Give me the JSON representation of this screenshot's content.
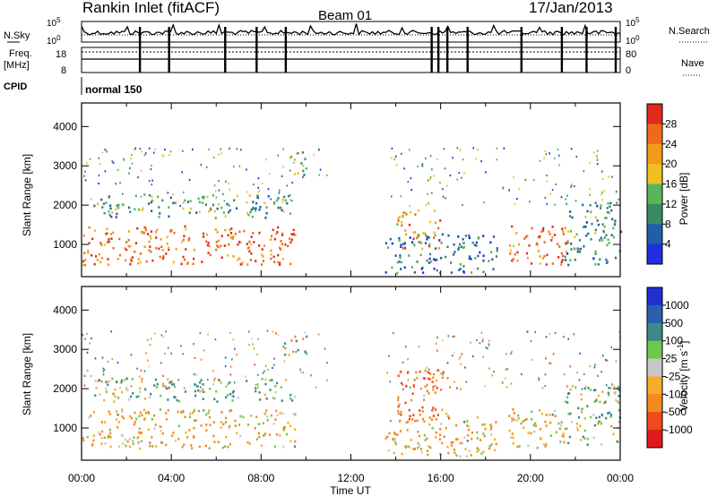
{
  "header": {
    "station": "Rankin Inlet (fitACF)",
    "beam": "Beam 01",
    "date": "17/Jan/2013"
  },
  "side_labels": {
    "nsky": "N.Sky",
    "nsearch": "N.Search",
    "freq_line1": "Freq.",
    "freq_line2": "[MHz]",
    "nave": "Nave",
    "cpid": "CPID"
  },
  "noise_ticks": {
    "top": "10^5",
    "bottom": "10^0"
  },
  "freq_ticks": {
    "top": "18",
    "bottom": "8"
  },
  "nave_ticks": {
    "top": "80",
    "bottom": "0"
  },
  "cpid_value": "normal 150",
  "colors": {
    "power": [
      "#1f2fe0",
      "#1f5fa8",
      "#3a8a66",
      "#57b55a",
      "#f0c020",
      "#f39a1a",
      "#ee6a1a",
      "#e02a1a"
    ],
    "velocity": [
      "#e01a1a",
      "#ef4a1a",
      "#f38a20",
      "#f6ad2a",
      "#c8c8c8",
      "#6fc84a",
      "#3a8a8a",
      "#2a5fb0",
      "#1f2fd0"
    ]
  },
  "chart_data": [
    {
      "type": "heatmap",
      "title": "",
      "ylabel": "Slant Range [km]",
      "xlabel": "Time UT",
      "x_ticks": [
        "00:00",
        "04:00",
        "08:00",
        "12:00",
        "16:00",
        "20:00",
        "00:00"
      ],
      "xlim_hours": [
        0,
        24
      ],
      "y_ticks": [
        1000,
        2000,
        3000,
        4000
      ],
      "ylim": [
        180,
        4600
      ],
      "colorbar": {
        "label": "Power [dB]",
        "ticks": [
          4,
          8,
          12,
          16,
          20,
          24,
          28
        ],
        "range": [
          0,
          32
        ]
      },
      "regions": [
        {
          "t_start": 0.0,
          "t_end": 9.5,
          "r_min": 500,
          "r_max": 1500,
          "value": 26
        },
        {
          "t_start": 0.5,
          "t_end": 9.5,
          "r_min": 1700,
          "r_max": 2300,
          "value": 12
        },
        {
          "t_start": 9.0,
          "t_end": 10.0,
          "r_min": 2800,
          "r_max": 3400,
          "value": 14
        },
        {
          "t_start": 14.0,
          "t_end": 16.0,
          "r_min": 900,
          "r_max": 1900,
          "value": 22
        },
        {
          "t_start": 13.5,
          "t_end": 18.5,
          "r_min": 300,
          "r_max": 1300,
          "value": 8
        },
        {
          "t_start": 19.0,
          "t_end": 21.7,
          "r_min": 500,
          "r_max": 1500,
          "value": 26
        },
        {
          "t_start": 21.5,
          "t_end": 24.0,
          "r_min": 500,
          "r_max": 2100,
          "value": 10
        }
      ]
    },
    {
      "type": "heatmap",
      "title": "",
      "ylabel": "Slant Range [km]",
      "xlabel": "Time UT",
      "x_ticks": [
        "00:00",
        "04:00",
        "08:00",
        "12:00",
        "16:00",
        "20:00",
        "00:00"
      ],
      "xlim_hours": [
        0,
        24
      ],
      "y_ticks": [
        1000,
        2000,
        3000,
        4000
      ],
      "ylim": [
        180,
        4600
      ],
      "colorbar": {
        "label": "Velocity [m s^-1]",
        "ticks": [
          1000,
          500,
          100,
          25,
          -25,
          -100,
          -500,
          -1000
        ]
      },
      "regions": [
        {
          "t_start": 0.0,
          "t_end": 9.5,
          "r_min": 500,
          "r_max": 1500,
          "value": -100
        },
        {
          "t_start": 0.5,
          "t_end": 9.5,
          "r_min": 1700,
          "r_max": 2300,
          "value": 100
        },
        {
          "t_start": 9.0,
          "t_end": 10.0,
          "r_min": 2800,
          "r_max": 3400,
          "value": 25
        },
        {
          "t_start": 14.0,
          "t_end": 16.5,
          "r_min": 1200,
          "r_max": 2500,
          "value": -500
        },
        {
          "t_start": 13.5,
          "t_end": 18.5,
          "r_min": 300,
          "r_max": 1300,
          "value": -100
        },
        {
          "t_start": 19.0,
          "t_end": 21.7,
          "r_min": 500,
          "r_max": 1500,
          "value": -100
        },
        {
          "t_start": 21.5,
          "t_end": 24.0,
          "r_min": 600,
          "r_max": 2100,
          "value": 100
        }
      ]
    }
  ]
}
